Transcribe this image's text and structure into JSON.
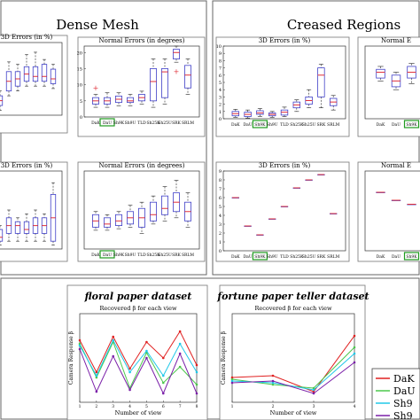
{
  "panels": {
    "dense_mesh": "Dense Mesh",
    "creased_regions": "Creased Regions"
  },
  "legend": {
    "entries": [
      "DaK",
      "DaU",
      "Sh9",
      "Sh9"
    ]
  },
  "colors": {
    "frame": "#555555",
    "box": "#3f3fc8",
    "median": "#e0303a",
    "highlight": "#1f9a1f",
    "series": [
      "#e02020",
      "#4cc84c",
      "#20c8e8",
      "#7a1fa8"
    ]
  },
  "chart_data": [
    {
      "id": "dm_top_left",
      "type": "box",
      "title": "3D Errors (in %)",
      "categories": [
        "",
        "",
        "",
        "",
        "",
        "",
        ""
      ],
      "boxes": [
        {
          "q1": 2.0,
          "median": 3.0,
          "q3": 4.0,
          "lo": 1.0,
          "hi": 5.0
        },
        {
          "q1": 5.0,
          "median": 7.0,
          "q3": 9.0,
          "lo": 4.0,
          "hi": 11.0
        },
        {
          "q1": 6.0,
          "median": 7.5,
          "q3": 9.0,
          "lo": 5.0,
          "hi": 10.5
        },
        {
          "q1": 7.0,
          "median": 8.5,
          "q3": 10.0,
          "lo": 6.0,
          "hi": 12.5
        },
        {
          "q1": 7.0,
          "median": 8.0,
          "q3": 10.0,
          "lo": 6.0,
          "hi": 13.0
        },
        {
          "q1": 7.0,
          "median": 8.0,
          "q3": 10.5,
          "lo": 6.0,
          "hi": 11.5
        },
        {
          "q1": 6.5,
          "median": 7.5,
          "q3": 9.5,
          "lo": 5.5,
          "hi": 10.5
        }
      ],
      "ylim": [
        0,
        15
      ],
      "highlight": -1
    },
    {
      "id": "dm_top_right",
      "type": "box",
      "title": "Normal Errors (in degrees)",
      "categories": [
        "DaK",
        "DaU",
        "Sh9K",
        "Sh9U",
        "TLD",
        "Sh25K",
        "Sh25U",
        "SRK",
        "SRLM"
      ],
      "boxes": [
        {
          "q1": 4.0,
          "median": 5.0,
          "q3": 6.0,
          "lo": 3.0,
          "hi": 7.0
        },
        {
          "q1": 4.0,
          "median": 5.0,
          "q3": 6.0,
          "lo": 3.0,
          "hi": 7.5
        },
        {
          "q1": 4.5,
          "median": 5.5,
          "q3": 6.5,
          "lo": 3.5,
          "hi": 7.5
        },
        {
          "q1": 4.5,
          "median": 5.0,
          "q3": 6.0,
          "lo": 3.5,
          "hi": 7.0
        },
        {
          "q1": 5.0,
          "median": 6.0,
          "q3": 7.0,
          "lo": 4.0,
          "hi": 8.0
        },
        {
          "q1": 5.0,
          "median": 11.0,
          "q3": 15.0,
          "lo": 3.0,
          "hi": 18.0
        },
        {
          "q1": 6.0,
          "median": 14.0,
          "q3": 15.0,
          "lo": 4.0,
          "hi": 18.0
        },
        {
          "q1": 18.0,
          "median": 20.0,
          "q3": 21.0,
          "lo": 17.0,
          "hi": 22.0
        },
        {
          "q1": 9.0,
          "median": 13.0,
          "q3": 16.0,
          "lo": 7.0,
          "hi": 18.0
        }
      ],
      "outliers": [
        [
          0,
          9.0
        ],
        [
          7,
          14.0
        ]
      ],
      "yticks": [
        0,
        5,
        10,
        15,
        20
      ],
      "ylim": [
        0,
        22
      ],
      "highlight": 1
    },
    {
      "id": "dm_bottom_left",
      "type": "box",
      "title": "3D Errors (in %)",
      "categories": [
        "",
        "",
        "",
        "",
        "",
        "",
        ""
      ],
      "boxes": [
        {
          "q1": 1.0,
          "median": 1.5,
          "q3": 2.5,
          "lo": 0.5,
          "hi": 3.0
        },
        {
          "q1": 2.0,
          "median": 3.0,
          "q3": 4.0,
          "lo": 1.0,
          "hi": 5.0
        },
        {
          "q1": 2.0,
          "median": 3.0,
          "q3": 3.5,
          "lo": 1.0,
          "hi": 4.0
        },
        {
          "q1": 2.0,
          "median": 2.5,
          "q3": 3.5,
          "lo": 1.0,
          "hi": 4.5
        },
        {
          "q1": 2.0,
          "median": 3.0,
          "q3": 4.0,
          "lo": 1.0,
          "hi": 5.0
        },
        {
          "q1": 2.0,
          "median": 3.0,
          "q3": 4.0,
          "lo": 1.0,
          "hi": 4.5
        },
        {
          "q1": 1.0,
          "median": 4.0,
          "q3": 7.0,
          "lo": 0.5,
          "hi": 8.5
        }
      ],
      "ylim": [
        0,
        10
      ],
      "highlight": -1
    },
    {
      "id": "dm_bottom_right",
      "type": "box",
      "title": "Normal Errors (in degrees)",
      "categories": [
        "DaK",
        "DaU",
        "Sh9K",
        "Sh9U",
        "TLD",
        "Sh25K",
        "Sh25U",
        "SRK",
        "SRLM"
      ],
      "boxes": [
        {
          "q1": 7.0,
          "median": 9.0,
          "q3": 11.0,
          "lo": 6.0,
          "hi": 12.0
        },
        {
          "q1": 7.0,
          "median": 8.0,
          "q3": 10.0,
          "lo": 6.0,
          "hi": 11.0
        },
        {
          "q1": 7.5,
          "median": 9.0,
          "q3": 11.0,
          "lo": 6.5,
          "hi": 12.0
        },
        {
          "q1": 8.0,
          "median": 10.0,
          "q3": 12.0,
          "lo": 7.0,
          "hi": 14.0
        },
        {
          "q1": 7.0,
          "median": 10.0,
          "q3": 13.0,
          "lo": 5.0,
          "hi": 15.0
        },
        {
          "q1": 9.0,
          "median": 11.0,
          "q3": 15.0,
          "lo": 8.0,
          "hi": 17.0
        },
        {
          "q1": 11.0,
          "median": 13.0,
          "q3": 17.0,
          "lo": 9.0,
          "hi": 20.0
        },
        {
          "q1": 12.0,
          "median": 15.0,
          "q3": 18.0,
          "lo": 10.0,
          "hi": 22.0
        },
        {
          "q1": 9.0,
          "median": 12.0,
          "q3": 15.0,
          "lo": 7.0,
          "hi": 18.0
        }
      ],
      "ylim": [
        0,
        25
      ],
      "highlight": 1
    },
    {
      "id": "cr_top_left",
      "type": "box",
      "title": "3D Errors (in %)",
      "categories": [
        "DaK",
        "DaU",
        "Sh9K",
        "Sh9U",
        "TLD",
        "Sh25K",
        "Sh25U",
        "SRK",
        "SRLM"
      ],
      "boxes": [
        {
          "q1": 0.4,
          "median": 0.7,
          "q3": 1.0,
          "lo": 0.2,
          "hi": 1.3
        },
        {
          "q1": 0.3,
          "median": 0.6,
          "q3": 0.9,
          "lo": 0.1,
          "hi": 1.2
        },
        {
          "q1": 0.6,
          "median": 0.8,
          "q3": 1.1,
          "lo": 0.3,
          "hi": 1.4
        },
        {
          "q1": 0.4,
          "median": 0.6,
          "q3": 0.8,
          "lo": 0.2,
          "hi": 1.0
        },
        {
          "q1": 0.5,
          "median": 0.9,
          "q3": 1.2,
          "lo": 0.3,
          "hi": 1.6
        },
        {
          "q1": 1.5,
          "median": 1.9,
          "q3": 2.3,
          "lo": 1.0,
          "hi": 2.6
        },
        {
          "q1": 2.0,
          "median": 2.5,
          "q3": 3.0,
          "lo": 1.5,
          "hi": 4.0
        },
        {
          "q1": 3.0,
          "median": 6.0,
          "q3": 7.0,
          "lo": 1.5,
          "hi": 7.5
        },
        {
          "q1": 1.8,
          "median": 2.3,
          "q3": 2.8,
          "lo": 1.2,
          "hi": 3.2
        }
      ],
      "yticks": [
        0,
        1,
        2,
        3,
        4,
        5,
        6,
        7,
        8,
        9,
        10
      ],
      "ylim": [
        0,
        10
      ],
      "highlight": 2
    },
    {
      "id": "cr_top_right",
      "type": "box",
      "title": "Normal E",
      "categories": [
        "DaK",
        "DaU",
        "Sh9K"
      ],
      "boxes": [
        {
          "q1": 14.0,
          "median": 16.0,
          "q3": 17.0,
          "lo": 13.0,
          "hi": 18.0
        },
        {
          "q1": 11.0,
          "median": 13.0,
          "q3": 15.0,
          "lo": 10.0,
          "hi": 16.0
        },
        {
          "q1": 14.0,
          "median": 16.0,
          "q3": 18.0,
          "lo": 12.0,
          "hi": 19.0
        }
      ],
      "ylim": [
        0,
        25
      ],
      "highlight": 2
    },
    {
      "id": "cr_bottom_left",
      "type": "box",
      "title": "3D Errors (in %)",
      "categories": [
        "DaK",
        "DaU",
        "Sh9K",
        "Sh9U",
        "TLD",
        "Sh25K",
        "Sh25U",
        "SRK",
        "SRLM"
      ],
      "boxes": [
        {
          "q1": 6.0,
          "median": 6.0,
          "q3": 6.0,
          "lo": 6.0,
          "hi": 6.0
        },
        {
          "q1": 2.8,
          "median": 2.8,
          "q3": 2.8,
          "lo": 2.8,
          "hi": 2.8
        },
        {
          "q1": 1.8,
          "median": 1.8,
          "q3": 1.8,
          "lo": 1.8,
          "hi": 1.8
        },
        {
          "q1": 3.6,
          "median": 3.6,
          "q3": 3.6,
          "lo": 3.6,
          "hi": 3.6
        },
        {
          "q1": 5.0,
          "median": 5.0,
          "q3": 5.0,
          "lo": 5.0,
          "hi": 5.0
        },
        {
          "q1": 7.1,
          "median": 7.1,
          "q3": 7.1,
          "lo": 7.1,
          "hi": 7.1
        },
        {
          "q1": 8.0,
          "median": 8.0,
          "q3": 8.0,
          "lo": 8.0,
          "hi": 8.0
        },
        {
          "q1": 8.6,
          "median": 8.6,
          "q3": 8.6,
          "lo": 8.6,
          "hi": 8.6
        },
        {
          "q1": 4.2,
          "median": 4.2,
          "q3": 4.2,
          "lo": 4.2,
          "hi": 4.2
        }
      ],
      "yticks": [
        0,
        1,
        2,
        3,
        4,
        5,
        6,
        7,
        8,
        9
      ],
      "ylim": [
        0,
        9
      ],
      "highlight": 2
    },
    {
      "id": "cr_bottom_right",
      "type": "box",
      "title": "Normal E",
      "categories": [
        "DaK",
        "DaU",
        "Sh9K"
      ],
      "boxes": [
        {
          "q1": 22.0,
          "median": 22.0,
          "q3": 22.0,
          "lo": 22.0,
          "hi": 22.0
        },
        {
          "q1": 19.0,
          "median": 19.0,
          "q3": 19.0,
          "lo": 19.0,
          "hi": 19.0
        },
        {
          "q1": 17.5,
          "median": 17.5,
          "q3": 17.5,
          "lo": 17.5,
          "hi": 17.5
        }
      ],
      "ylim": [
        0,
        30
      ],
      "highlight": 2
    },
    {
      "id": "floral",
      "type": "line",
      "title": "floral paper dataset",
      "subtitle": "Recovered β for each view",
      "xlabel": "Number of view",
      "ylabel": "Camera Response β",
      "x": [
        1,
        2,
        3,
        4,
        5,
        6,
        7,
        8
      ],
      "xlim": [
        1,
        8
      ],
      "ylim": [
        0,
        1
      ],
      "series": [
        {
          "values": [
            0.7,
            0.34,
            0.74,
            0.38,
            0.68,
            0.5,
            0.8,
            0.42
          ]
        },
        {
          "values": [
            0.66,
            0.28,
            0.68,
            0.16,
            0.56,
            0.22,
            0.4,
            0.2
          ]
        },
        {
          "values": [
            0.64,
            0.3,
            0.7,
            0.34,
            0.58,
            0.3,
            0.66,
            0.34
          ]
        },
        {
          "values": [
            0.6,
            0.12,
            0.52,
            0.14,
            0.5,
            0.1,
            0.55,
            0.1
          ]
        }
      ]
    },
    {
      "id": "fortune",
      "type": "line",
      "title": "fortune paper teller dataset",
      "subtitle": "Recovered β for each view",
      "xlabel": "Number of view",
      "ylabel": "Camera Response β",
      "x": [
        1,
        2,
        3,
        4
      ],
      "xlim": [
        1,
        4
      ],
      "ylim": [
        0,
        1
      ],
      "series": [
        {
          "values": [
            0.28,
            0.3,
            0.12,
            0.75
          ]
        },
        {
          "values": [
            0.26,
            0.2,
            0.16,
            0.62
          ]
        },
        {
          "values": [
            0.24,
            0.22,
            0.14,
            0.55
          ]
        },
        {
          "values": [
            0.22,
            0.24,
            0.1,
            0.45
          ]
        }
      ]
    }
  ]
}
